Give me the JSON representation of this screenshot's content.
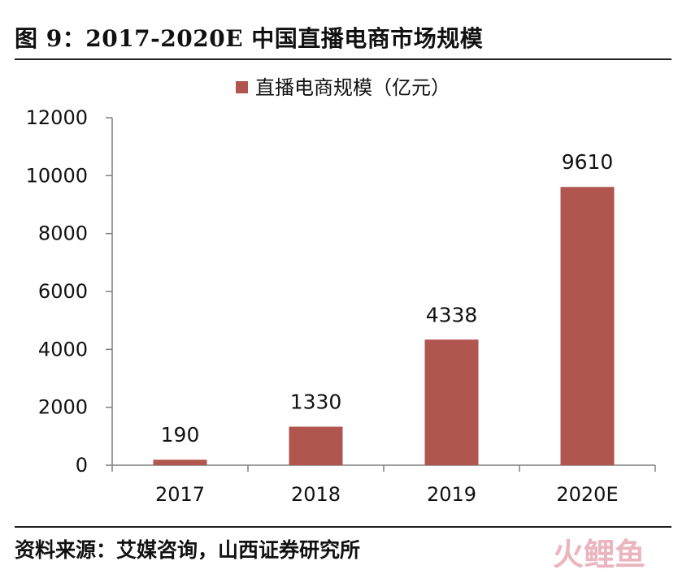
{
  "title": "图 9：2017-2020E 中国直播电商市场规模",
  "source": "资料来源：艾媒咨询，山西证券研究所",
  "watermark": "火鲤鱼",
  "colors": {
    "bar": "#b0564f",
    "axis": "#7f7f7f",
    "text": "#111111"
  },
  "chart_data": {
    "type": "bar",
    "title": "",
    "xlabel": "",
    "ylabel": "",
    "categories": [
      "2017",
      "2018",
      "2019",
      "2020E"
    ],
    "series": [
      {
        "name": "直播电商规模（亿元）",
        "values": [
          190,
          1330,
          4338,
          9610
        ]
      }
    ],
    "data_labels": [
      "190",
      "1330",
      "4338",
      "9610"
    ],
    "ylim": [
      0,
      12000
    ],
    "yticks": [
      0,
      2000,
      4000,
      6000,
      8000,
      10000,
      12000
    ],
    "ytick_labels": [
      "0",
      "2000",
      "4000",
      "6000",
      "8000",
      "10000",
      "12000"
    ],
    "grid": false,
    "legend_position": "top"
  }
}
